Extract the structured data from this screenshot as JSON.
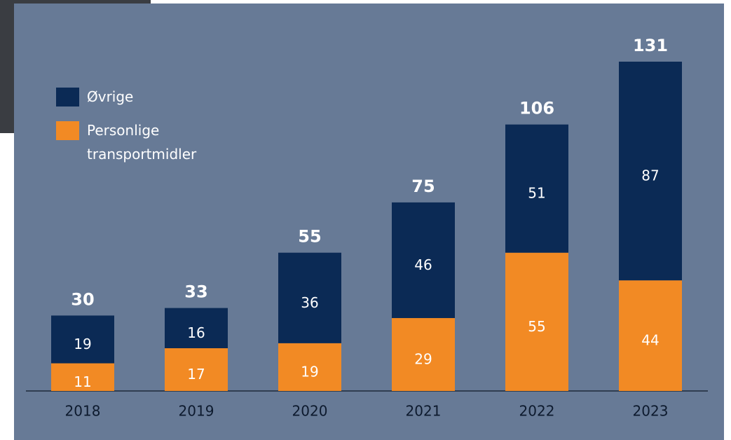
{
  "chart_data": {
    "type": "stacked-bar",
    "categories": [
      "2018",
      "2019",
      "2020",
      "2021",
      "2022",
      "2023"
    ],
    "series": [
      {
        "name": "Øvrige",
        "color": "#0b2a55",
        "values": [
          19,
          16,
          36,
          46,
          51,
          87
        ]
      },
      {
        "name": "Personlige transportmidler",
        "color": "#f28a24",
        "values": [
          11,
          17,
          19,
          29,
          55,
          44
        ]
      }
    ],
    "totals": [
      30,
      33,
      55,
      75,
      106,
      131
    ]
  }
}
